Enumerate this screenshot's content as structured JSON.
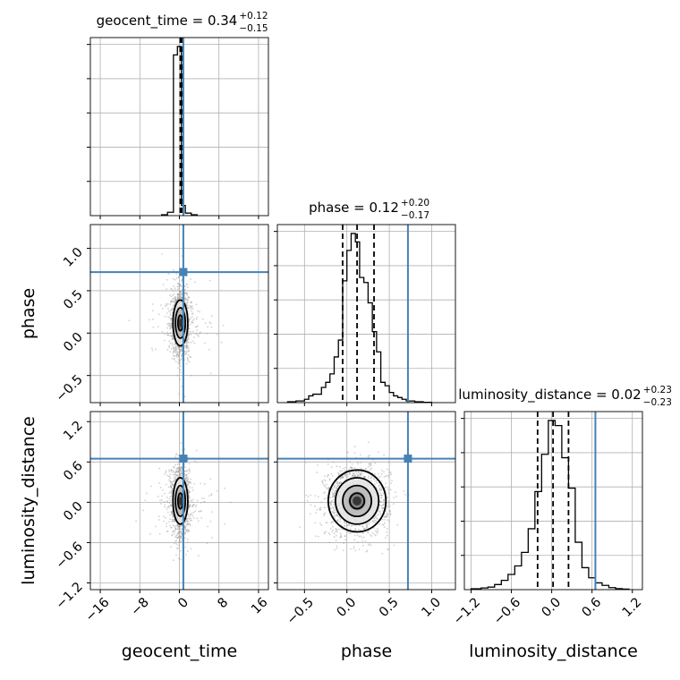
{
  "chart_data": {
    "type": "corner",
    "parameters": [
      "geocent_time",
      "phase",
      "luminosity_distance"
    ],
    "truths": {
      "geocent_time": 0.8,
      "phase": 0.72,
      "luminosity_distance": 0.65
    },
    "colors": {
      "truth": "#4682b4",
      "hist": "#000000",
      "grid": "#b0b0b0",
      "scatter": "#9a9a9a"
    },
    "grid": true,
    "axes": {
      "geocent_time": {
        "xlabel": "geocent_time",
        "range": [
          -18,
          18
        ],
        "ticks": [
          -16,
          -8,
          0,
          8,
          16
        ],
        "tick_labels": [
          "−16",
          "−8",
          "0",
          "8",
          "16"
        ]
      },
      "phase": {
        "xlabel": "phase",
        "ylabel": "phase",
        "range": [
          -0.82,
          1.28
        ],
        "ticks": [
          -0.5,
          0.0,
          0.5,
          1.0
        ],
        "tick_labels": [
          "−0.5",
          "0.0",
          "0.5",
          "1.0"
        ]
      },
      "luminosity_distance": {
        "xlabel": "luminosity_distance",
        "ylabel": "luminosity_distance",
        "range": [
          -1.3,
          1.35
        ],
        "ticks": [
          -1.2,
          -0.6,
          0.0,
          0.6,
          1.2
        ],
        "tick_labels": [
          "−1.2",
          "−0.6",
          "0.0",
          "0.6",
          "1.2"
        ]
      }
    },
    "titles": [
      {
        "param": "geocent_time",
        "text": "geocent_time = 0.34",
        "plus": "+0.12",
        "minus": "−0.15",
        "quantiles": [
          0.19,
          0.34,
          0.46
        ]
      },
      {
        "param": "phase",
        "text": "phase = 0.12",
        "plus": "+0.20",
        "minus": "−0.17",
        "quantiles": [
          -0.05,
          0.12,
          0.32
        ]
      },
      {
        "param": "luminosity_distance",
        "text": "luminosity_distance = 0.02",
        "plus": "+0.23",
        "minus": "−0.23",
        "quantiles": [
          -0.21,
          0.02,
          0.25
        ]
      }
    ],
    "histograms": {
      "geocent_time": {
        "edges": [
          -3.6,
          -2.4,
          -1.2,
          -0.4,
          0.4,
          1.2,
          2.4,
          3.6
        ],
        "counts": [
          0.005,
          0.02,
          0.95,
          1.0,
          0.06,
          0.015,
          0.005
        ]
      },
      "phase": {
        "edges": [
          -0.7,
          -0.6,
          -0.5,
          -0.45,
          -0.4,
          -0.35,
          -0.3,
          -0.25,
          -0.2,
          -0.15,
          -0.1,
          -0.05,
          0.0,
          0.05,
          0.1,
          0.15,
          0.2,
          0.25,
          0.3,
          0.35,
          0.4,
          0.45,
          0.5,
          0.55,
          0.6,
          0.65,
          0.7,
          0.8,
          0.9,
          1.0
        ],
        "counts": [
          0.005,
          0.01,
          0.02,
          0.04,
          0.05,
          0.05,
          0.09,
          0.12,
          0.17,
          0.27,
          0.37,
          0.72,
          0.9,
          1.0,
          0.95,
          0.74,
          0.71,
          0.59,
          0.42,
          0.3,
          0.12,
          0.1,
          0.06,
          0.04,
          0.03,
          0.02,
          0.01,
          0.005,
          0.002
        ]
      },
      "luminosity_distance": {
        "edges": [
          -1.2,
          -1.05,
          -0.95,
          -0.85,
          -0.75,
          -0.65,
          -0.55,
          -0.45,
          -0.35,
          -0.25,
          -0.15,
          -0.05,
          0.05,
          0.15,
          0.25,
          0.35,
          0.45,
          0.55,
          0.65,
          0.75,
          0.85,
          0.95,
          1.05,
          1.15
        ],
        "counts": [
          0.005,
          0.01,
          0.015,
          0.03,
          0.055,
          0.09,
          0.14,
          0.22,
          0.36,
          0.58,
          0.8,
          1.0,
          0.97,
          0.78,
          0.6,
          0.28,
          0.13,
          0.07,
          0.04,
          0.025,
          0.012,
          0.006,
          0.003
        ]
      }
    },
    "contours": {
      "phase_vs_geocent_time": {
        "center": [
          0.2,
          0.12
        ],
        "levels_sigma_frac": [
          0.5,
          1.0,
          1.5
        ]
      },
      "luminosity_distance_vs_geocent_time": {
        "center": [
          0.2,
          0.02
        ],
        "levels_sigma_frac": [
          0.5,
          1.0,
          1.5
        ]
      },
      "luminosity_distance_vs_phase": {
        "center": [
          0.12,
          0.02
        ],
        "levels_sigma_frac": [
          0.5,
          1.0,
          1.5,
          2.0
        ]
      }
    }
  }
}
